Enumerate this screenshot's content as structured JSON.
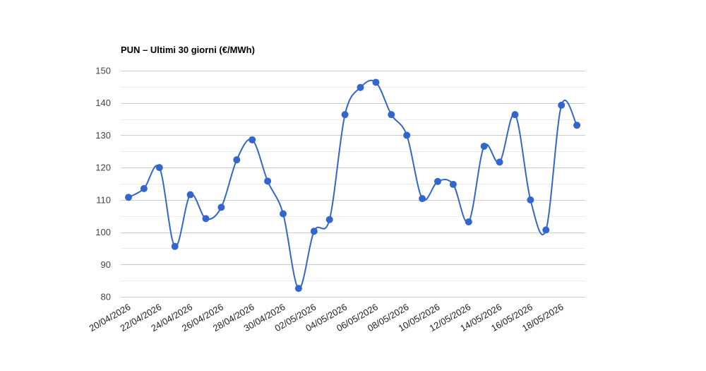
{
  "chart_data": {
    "type": "line",
    "title": "PUN – Ultimi 30 giorni (€/MWh)",
    "xlabel": "",
    "ylabel": "",
    "ylim": [
      80,
      150
    ],
    "yticks": [
      80,
      90,
      100,
      110,
      120,
      130,
      140,
      150
    ],
    "grid": true,
    "legend": "none",
    "curve": "smooth",
    "x": [
      "20/04/2026",
      "21/04/2026",
      "22/04/2026",
      "23/04/2026",
      "24/04/2026",
      "25/04/2026",
      "26/04/2026",
      "27/04/2026",
      "28/04/2026",
      "29/04/2026",
      "30/04/2026",
      "01/05/2026",
      "02/05/2026",
      "03/05/2026",
      "04/05/2026",
      "05/05/2026",
      "06/05/2026",
      "07/05/2026",
      "08/05/2026",
      "09/05/2026",
      "10/05/2026",
      "11/05/2026",
      "12/05/2026",
      "13/05/2026",
      "14/05/2026",
      "15/05/2026",
      "16/05/2026",
      "17/05/2026",
      "18/05/2026",
      "19/05/2026"
    ],
    "xtick_labels": [
      "20/04/2026",
      "22/04/2026",
      "24/04/2026",
      "26/04/2026",
      "28/04/2026",
      "30/04/2026",
      "02/05/2026",
      "04/05/2026",
      "06/05/2026",
      "08/05/2026",
      "10/05/2026",
      "12/05/2026",
      "14/05/2026",
      "16/05/2026",
      "18/05/2026"
    ],
    "series": [
      {
        "color": "#3366cc",
        "values": [
          110.8,
          113.5,
          120.0,
          95.6,
          111.6,
          104.2,
          107.7,
          122.4,
          128.6,
          115.8,
          105.7,
          82.6,
          100.3,
          103.9,
          136.4,
          144.8,
          146.4,
          136.4,
          130.0,
          110.4,
          115.7,
          114.8,
          103.2,
          126.6,
          121.7,
          136.4,
          110.0,
          100.7,
          139.3,
          133.1
        ]
      }
    ]
  }
}
